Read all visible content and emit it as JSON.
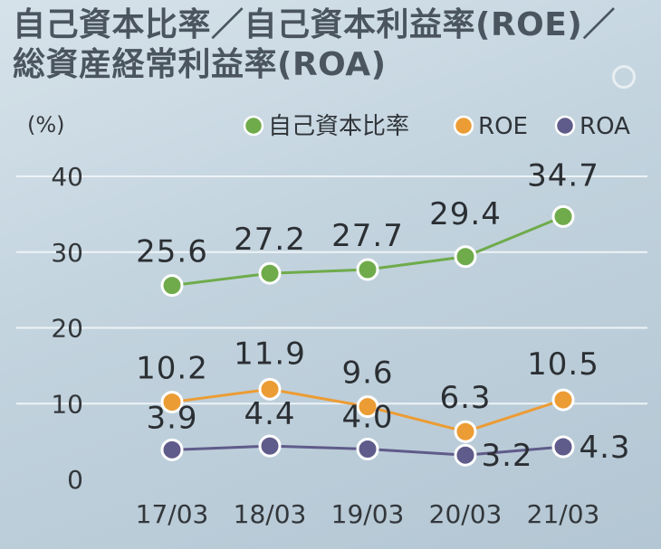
{
  "title_lines": [
    "自己資本比率／自己資本利益率(ROE)／",
    "総資産経常利益率(ROA)"
  ],
  "chart_data": {
    "type": "line",
    "title": "自己資本比率／自己資本利益率(ROE)／総資産経常利益率(ROA)",
    "ylabel": "(%)",
    "xlabel": "",
    "categories": [
      "17/03",
      "18/03",
      "19/03",
      "20/03",
      "21/03"
    ],
    "ylim": [
      0,
      40
    ],
    "yticks": [
      "0",
      "10",
      "20",
      "30",
      "40"
    ],
    "grid": true,
    "legend_position": "top-right",
    "series": [
      {
        "name": "自己資本比率",
        "color": "#6fab4b",
        "values": [
          25.6,
          27.2,
          27.7,
          29.4,
          34.7
        ],
        "labels": [
          "25.6",
          "27.2",
          "27.7",
          "29.4",
          "34.7"
        ]
      },
      {
        "name": "ROE",
        "color": "#ec9c34",
        "values": [
          10.2,
          11.9,
          9.6,
          6.3,
          10.5
        ],
        "labels": [
          "10.2",
          "11.9",
          "9.6",
          "6.3",
          "10.5"
        ]
      },
      {
        "name": "ROA",
        "color": "#5f5b8a",
        "values": [
          3.9,
          4.4,
          4.0,
          3.2,
          4.3
        ],
        "labels": [
          "3.9",
          "4.4",
          "4.0",
          "3.2",
          "4.3"
        ]
      }
    ]
  }
}
